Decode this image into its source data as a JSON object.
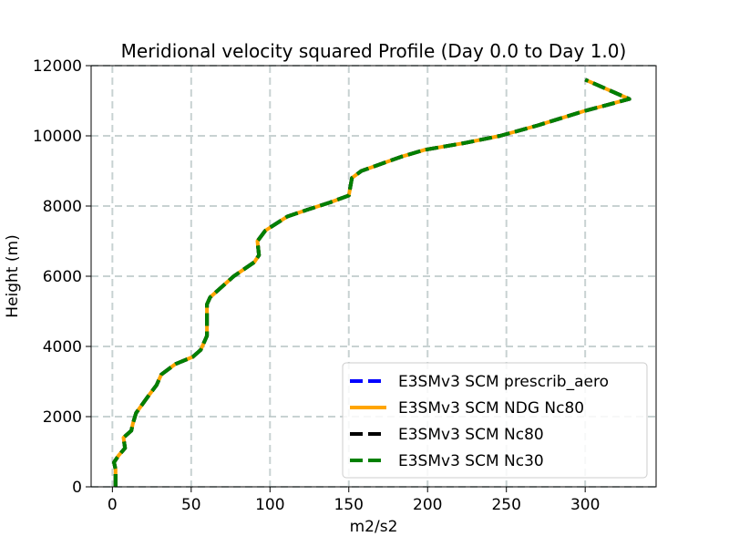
{
  "chart_data": {
    "type": "line",
    "title": "Meridional velocity squared Profile (Day 0.0 to Day 1.0)",
    "xlabel": "m2/s2",
    "ylabel": "Height (m)",
    "xlim": [
      -13.5,
      345
    ],
    "ylim": [
      0,
      12000
    ],
    "xticks": [
      0,
      50,
      100,
      150,
      200,
      250,
      300
    ],
    "xtick_labels": [
      "0",
      "50",
      "100",
      "150",
      "200",
      "250",
      "300"
    ],
    "yticks": [
      0,
      2000,
      4000,
      6000,
      8000,
      10000,
      12000
    ],
    "ytick_labels": [
      "0",
      "2000",
      "4000",
      "6000",
      "8000",
      "10000",
      "12000"
    ],
    "grid": true,
    "legend_position": "lower-right",
    "series": [
      {
        "name": "E3SMv3 SCM prescrib_aero",
        "color": "#0000ff",
        "linestyle": "dashed",
        "x": [
          2,
          2,
          2,
          2,
          1,
          4,
          8,
          7,
          12,
          13,
          15,
          23,
          28,
          31,
          40,
          51,
          56,
          58,
          60,
          60,
          60,
          62,
          77,
          90,
          93,
          92,
          97,
          111,
          124,
          138,
          150,
          152,
          158,
          183,
          198,
          224,
          246,
          270,
          299,
          328,
          300
        ],
        "y": [
          0,
          100,
          300,
          500,
          700,
          900,
          1100,
          1400,
          1600,
          1800,
          2100,
          2600,
          2900,
          3200,
          3500,
          3700,
          3900,
          4100,
          4300,
          4700,
          5200,
          5400,
          6000,
          6400,
          6600,
          7000,
          7300,
          7700,
          7900,
          8100,
          8300,
          8800,
          9000,
          9400,
          9600,
          9800,
          10000,
          10300,
          10700,
          11050,
          11600
        ]
      },
      {
        "name": "E3SMv3 SCM NDG Nc80",
        "color": "#ffa500",
        "linestyle": "solid",
        "x": [
          2,
          2,
          2,
          2,
          1,
          4,
          8,
          7,
          12,
          13,
          15,
          23,
          28,
          31,
          40,
          51,
          56,
          58,
          60,
          60,
          60,
          62,
          77,
          90,
          93,
          92,
          97,
          111,
          124,
          138,
          150,
          152,
          158,
          183,
          198,
          224,
          246,
          270,
          299,
          328,
          300
        ],
        "y": [
          0,
          100,
          300,
          500,
          700,
          900,
          1100,
          1400,
          1600,
          1800,
          2100,
          2600,
          2900,
          3200,
          3500,
          3700,
          3900,
          4100,
          4300,
          4700,
          5200,
          5400,
          6000,
          6400,
          6600,
          7000,
          7300,
          7700,
          7900,
          8100,
          8300,
          8800,
          9000,
          9400,
          9600,
          9800,
          10000,
          10300,
          10700,
          11050,
          11600
        ]
      },
      {
        "name": "E3SMv3 SCM Nc80",
        "color": "#000000",
        "linestyle": "dashed",
        "x": [
          2,
          2,
          2,
          2,
          1,
          4,
          8,
          7,
          12,
          13,
          15,
          23,
          28,
          31,
          40,
          51,
          56,
          58,
          60,
          60,
          60,
          62,
          77,
          90,
          93,
          92,
          97,
          111,
          124,
          138,
          150,
          152,
          158,
          183,
          198,
          224,
          246,
          270,
          299,
          328,
          300
        ],
        "y": [
          0,
          100,
          300,
          500,
          700,
          900,
          1100,
          1400,
          1600,
          1800,
          2100,
          2600,
          2900,
          3200,
          3500,
          3700,
          3900,
          4100,
          4300,
          4700,
          5200,
          5400,
          6000,
          6400,
          6600,
          7000,
          7300,
          7700,
          7900,
          8100,
          8300,
          8800,
          9000,
          9400,
          9600,
          9800,
          10000,
          10300,
          10700,
          11050,
          11600
        ]
      },
      {
        "name": "E3SMv3 SCM Nc30",
        "color": "#008000",
        "linestyle": "dashed",
        "x": [
          2,
          2,
          2,
          2,
          1,
          4,
          8,
          7,
          12,
          13,
          15,
          23,
          28,
          31,
          40,
          51,
          56,
          58,
          60,
          60,
          60,
          62,
          77,
          90,
          93,
          92,
          97,
          111,
          124,
          138,
          150,
          152,
          158,
          183,
          198,
          224,
          246,
          270,
          299,
          328,
          300
        ],
        "y": [
          0,
          100,
          300,
          500,
          700,
          900,
          1100,
          1400,
          1600,
          1800,
          2100,
          2600,
          2900,
          3200,
          3500,
          3700,
          3900,
          4100,
          4300,
          4700,
          5200,
          5400,
          6000,
          6400,
          6600,
          7000,
          7300,
          7700,
          7900,
          8100,
          8300,
          8800,
          9000,
          9400,
          9600,
          9800,
          10000,
          10300,
          10700,
          11050,
          11600
        ]
      }
    ]
  }
}
